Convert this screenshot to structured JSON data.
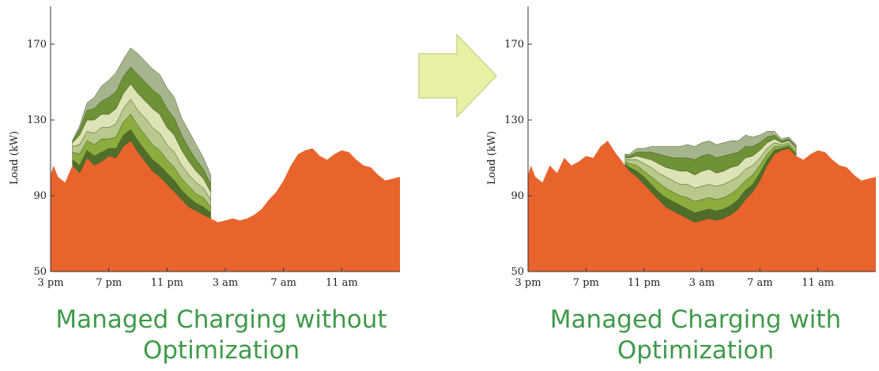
{
  "colors": {
    "base_load": "#e8642c",
    "ev_layers": [
      "#4f6e2a",
      "#8cac3e",
      "#b9c98d",
      "#dde3b4",
      "#6f9236",
      "#a6b58e",
      "#c4d07c"
    ],
    "arrow_fill": "#e9f1a5",
    "arrow_stroke": "#c9d68b",
    "caption": "#3f9a4a"
  },
  "icons": {
    "arrow": "right-arrow-icon"
  },
  "chart_data": [
    {
      "type": "area",
      "stacked": true,
      "caption_lines": [
        "Managed Charging without",
        "Optimization"
      ],
      "ylabel": "Load (kW)",
      "ylim": [
        50,
        190
      ],
      "yticks": [
        50,
        90,
        130,
        170
      ],
      "x_hours_range": [
        0,
        24
      ],
      "xtick_labels": [
        "3 pm",
        "7 pm",
        "11 pm",
        "3 am",
        "7 am",
        "11 am"
      ],
      "xtick_hours": [
        0,
        4,
        8,
        12,
        16,
        20
      ],
      "grid": false,
      "base_load": {
        "x_hours": [
          0,
          0.2,
          0.5,
          1,
          1.5,
          2,
          2.5,
          3,
          3.5,
          4,
          4.5,
          5,
          5.5,
          6,
          6.5,
          7,
          7.5,
          8,
          8.5,
          9,
          9.5,
          10,
          10.5,
          11,
          11.5,
          12,
          12.5,
          13,
          13.5,
          14,
          14.5,
          15,
          15.5,
          16,
          16.5,
          17,
          17.5,
          18,
          18.5,
          19,
          19.5,
          20,
          20.5,
          21,
          21.5,
          22,
          22.5,
          23,
          23.5,
          24
        ],
        "values": [
          101,
          106,
          100,
          97,
          106,
          102,
          110,
          106,
          108,
          111,
          110,
          116,
          119,
          113,
          108,
          103,
          100,
          96,
          92,
          88,
          84,
          82,
          80,
          78,
          76,
          77,
          78,
          77,
          78,
          80,
          83,
          88,
          92,
          98,
          106,
          112,
          114,
          115,
          111,
          109,
          112,
          114,
          113,
          109,
          106,
          105,
          101,
          98,
          99,
          100
        ]
      },
      "ev_series": [
        {
          "x_hours": [
            1.5,
            2,
            2.5,
            3,
            3.5,
            4,
            4.5,
            5,
            5.5,
            6,
            6.5,
            7,
            7.5,
            8,
            8.5,
            9,
            9.5,
            10,
            10.5,
            11
          ],
          "values": [
            3,
            4,
            4,
            5,
            5,
            4,
            5,
            6,
            6,
            6,
            6,
            6,
            6,
            6,
            6,
            5,
            5,
            4,
            4,
            3
          ]
        },
        {
          "x_hours": [
            1.5,
            2,
            2.5,
            3,
            3.5,
            4,
            4.5,
            5,
            5.5,
            6,
            6.5,
            7,
            7.5,
            8,
            8.5,
            9,
            9.5,
            10,
            10.5,
            11
          ],
          "values": [
            4,
            6,
            5,
            6,
            7,
            5,
            6,
            7,
            8,
            8,
            8,
            8,
            8,
            7,
            7,
            6,
            6,
            5,
            5,
            3
          ]
        },
        {
          "x_hours": [
            1.5,
            2,
            2.5,
            3,
            3.5,
            4,
            4.5,
            5,
            5.5,
            6,
            6.5,
            7,
            7.5,
            8,
            8.5,
            9,
            9.5,
            10,
            10.5,
            11
          ],
          "values": [
            3,
            5,
            5,
            6,
            6,
            6,
            7,
            7,
            8,
            8,
            9,
            9,
            9,
            8,
            8,
            7,
            6,
            6,
            5,
            4
          ]
        },
        {
          "x_hours": [
            1.5,
            2,
            2.5,
            3,
            3.5,
            4,
            4.5,
            5,
            5.5,
            6,
            6.5,
            7,
            7.5,
            8,
            8.5,
            9,
            9.5,
            10,
            10.5,
            11
          ],
          "values": [
            2,
            5,
            6,
            7,
            7,
            7,
            8,
            8,
            8,
            9,
            9,
            10,
            10,
            9,
            9,
            8,
            7,
            6,
            5,
            4
          ]
        },
        {
          "x_hours": [
            1.5,
            2,
            2.5,
            3,
            3.5,
            4,
            4.5,
            5,
            5.5,
            6,
            6.5,
            7,
            7.5,
            8,
            8.5,
            9,
            9.5,
            10,
            10.5,
            11
          ],
          "values": [
            1,
            3,
            5,
            6,
            7,
            9,
            9,
            9,
            9,
            10,
            10,
            10,
            10,
            10,
            9,
            8,
            7,
            6,
            5,
            4
          ]
        },
        {
          "x_hours": [
            1.5,
            2,
            2.5,
            3,
            3.5,
            4,
            4.5,
            5,
            5.5,
            6,
            6.5,
            7,
            7.5,
            8,
            8.5,
            9,
            9.5,
            10,
            10.5,
            11
          ],
          "values": [
            0,
            2,
            4,
            6,
            8,
            9,
            10,
            9,
            10,
            11,
            11,
            11,
            11,
            11,
            11,
            9,
            9,
            8,
            6,
            5
          ]
        }
      ]
    },
    {
      "type": "area",
      "stacked": true,
      "caption_lines": [
        "Managed Charging with",
        "Optimization"
      ],
      "ylabel": "Load (kW)",
      "ylim": [
        50,
        190
      ],
      "yticks": [
        50,
        90,
        130,
        170
      ],
      "x_hours_range": [
        0,
        24
      ],
      "xtick_labels": [
        "3 pm",
        "7 pm",
        "11 pm",
        "3 am",
        "7 am",
        "11 am"
      ],
      "xtick_hours": [
        0,
        4,
        8,
        12,
        16,
        20
      ],
      "grid": false,
      "base_load": {
        "x_hours": [
          0,
          0.2,
          0.5,
          1,
          1.5,
          2,
          2.5,
          3,
          3.5,
          4,
          4.5,
          5,
          5.5,
          6,
          6.5,
          7,
          7.5,
          8,
          8.5,
          9,
          9.5,
          10,
          10.5,
          11,
          11.5,
          12,
          12.5,
          13,
          13.5,
          14,
          14.5,
          15,
          15.5,
          16,
          16.5,
          17,
          17.5,
          18,
          18.5,
          19,
          19.5,
          20,
          20.5,
          21,
          21.5,
          22,
          22.5,
          23,
          23.5,
          24
        ],
        "values": [
          101,
          106,
          100,
          97,
          106,
          102,
          110,
          106,
          108,
          111,
          110,
          116,
          119,
          113,
          108,
          103,
          100,
          96,
          92,
          88,
          84,
          82,
          80,
          78,
          76,
          77,
          78,
          77,
          78,
          80,
          83,
          88,
          92,
          98,
          106,
          112,
          114,
          115,
          111,
          109,
          112,
          114,
          113,
          109,
          106,
          105,
          101,
          98,
          99,
          100
        ]
      },
      "ev_series": [
        {
          "x_hours": [
            6.7,
            7,
            7.5,
            8,
            8.5,
            9,
            9.5,
            10,
            10.5,
            11,
            11.5,
            12,
            12.5,
            13,
            13.5,
            14,
            14.5,
            15,
            15.5,
            16,
            16.5,
            17,
            17.5,
            18,
            18.5
          ],
          "values": [
            1,
            2,
            3,
            4,
            4,
            4,
            5,
            5,
            5,
            5,
            5,
            5,
            5,
            5,
            5,
            5,
            5,
            5,
            4,
            4,
            3,
            2,
            1,
            1,
            1
          ]
        },
        {
          "x_hours": [
            6.7,
            7,
            7.5,
            8,
            8.5,
            9,
            9.5,
            10,
            10.5,
            11,
            11.5,
            12,
            12.5,
            13,
            13.5,
            14,
            14.5,
            15,
            15.5,
            16,
            16.5,
            17,
            17.5,
            18,
            18.5
          ],
          "values": [
            1,
            2,
            3,
            3,
            4,
            5,
            5,
            5,
            5,
            6,
            6,
            6,
            6,
            6,
            6,
            6,
            6,
            5,
            5,
            4,
            3,
            2,
            1,
            1,
            1
          ]
        },
        {
          "x_hours": [
            6.7,
            7,
            7.5,
            8,
            8.5,
            9,
            9.5,
            10,
            10.5,
            11,
            11.5,
            12,
            12.5,
            13,
            13.5,
            14,
            14.5,
            15,
            15.5,
            16,
            16.5,
            17,
            17.5,
            18,
            18.5
          ],
          "values": [
            1,
            2,
            3,
            4,
            5,
            5,
            6,
            6,
            6,
            7,
            7,
            7,
            7,
            7,
            7,
            7,
            6,
            6,
            5,
            4,
            3,
            2,
            1,
            1,
            1
          ]
        },
        {
          "x_hours": [
            6.7,
            7,
            7.5,
            8,
            8.5,
            9,
            9.5,
            10,
            10.5,
            11,
            11.5,
            12,
            12.5,
            13,
            13.5,
            14,
            14.5,
            15,
            15.5,
            16,
            16.5,
            17,
            17.5,
            18,
            18.5
          ],
          "values": [
            1,
            1,
            2,
            3,
            4,
            5,
            5,
            6,
            7,
            7,
            7,
            8,
            8,
            7,
            7,
            7,
            6,
            6,
            5,
            4,
            3,
            2,
            1,
            1,
            1
          ]
        },
        {
          "x_hours": [
            6.7,
            7,
            7.5,
            8,
            8.5,
            9,
            9.5,
            10,
            10.5,
            11,
            11.5,
            12,
            12.5,
            13,
            13.5,
            14,
            14.5,
            15,
            15.5,
            16,
            16.5,
            17,
            17.5,
            18,
            18.5
          ],
          "values": [
            1,
            1,
            2,
            3,
            4,
            5,
            6,
            6,
            7,
            7,
            8,
            8,
            8,
            8,
            8,
            7,
            7,
            6,
            5,
            4,
            3,
            2,
            1,
            1,
            1
          ]
        },
        {
          "x_hours": [
            6.7,
            7,
            7.5,
            8,
            8.5,
            9,
            9.5,
            10,
            10.5,
            11,
            11.5,
            12,
            12.5,
            13,
            13.5,
            14,
            14.5,
            15,
            15.5,
            16,
            16.5,
            17,
            17.5,
            18,
            18.5
          ],
          "values": [
            1,
            1,
            2,
            2,
            3,
            4,
            5,
            6,
            6,
            7,
            7,
            7,
            7,
            7,
            7,
            7,
            6,
            6,
            5,
            4,
            3,
            2,
            1,
            1,
            1
          ]
        }
      ]
    }
  ]
}
